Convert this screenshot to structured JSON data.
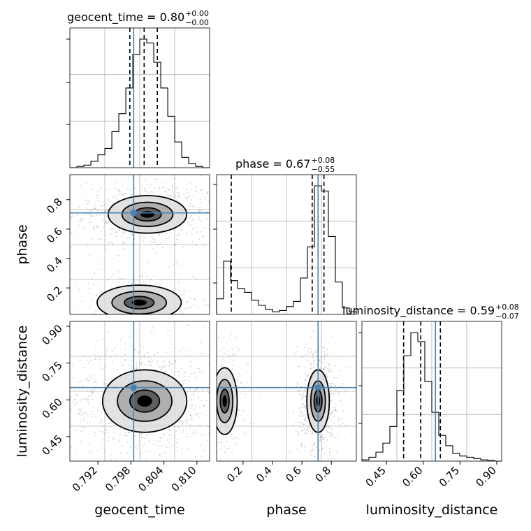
{
  "chart_data": {
    "type": "corner",
    "parameters": [
      "geocent_time",
      "phase",
      "luminosity_distance"
    ],
    "truth": {
      "geocent_time": 0.7985,
      "phase": 0.71,
      "luminosity_distance": 0.65
    },
    "ranges": {
      "geocent_time": [
        0.7869,
        0.8123
      ],
      "phase": [
        0.02,
        0.97
      ],
      "luminosity_distance": [
        0.35,
        0.92
      ]
    },
    "ticks": {
      "geocent_time": [
        "0.792",
        "0.798",
        "0.804",
        "0.810"
      ],
      "phase": [
        "0.2",
        "0.4",
        "0.6",
        "0.8"
      ],
      "luminosity_distance": [
        "0.45",
        "0.60",
        "0.75",
        "0.90"
      ]
    },
    "titles": [
      {
        "param": "geocent_time",
        "label": "geocent_time = 0.80",
        "plus": "+0.00",
        "minus": "−0.00"
      },
      {
        "param": "phase",
        "label": "phase = 0.67",
        "plus": "+0.08",
        "minus": "−0.55"
      },
      {
        "param": "luminosity_distance",
        "label": "luminosity_distance = 0.59",
        "plus": "+0.08",
        "minus": "−0.07"
      }
    ],
    "quantiles": {
      "geocent_time": [
        0.7978,
        0.8004,
        0.8028
      ],
      "phase": [
        0.12,
        0.67,
        0.75
      ],
      "luminosity_distance": [
        0.52,
        0.59,
        0.67
      ]
    },
    "histograms": {
      "geocent_time": {
        "edges": [
          0.7869,
          0.78818,
          0.78945,
          0.79072,
          0.79199,
          0.79326,
          0.79453,
          0.7958,
          0.79707,
          0.79834,
          0.79961,
          0.80088,
          0.80215,
          0.80342,
          0.80469,
          0.80596,
          0.80723,
          0.8085,
          0.80977,
          0.81104,
          0.8123
        ],
        "counts": [
          0,
          0.01,
          0.02,
          0.05,
          0.1,
          0.15,
          0.28,
          0.42,
          0.62,
          0.88,
          1.0,
          0.97,
          0.82,
          0.62,
          0.4,
          0.2,
          0.08,
          0.03,
          0.01,
          0
        ]
      },
      "phase": {
        "edges": [
          0.02,
          0.0675,
          0.115,
          0.1625,
          0.21,
          0.2575,
          0.305,
          0.3525,
          0.4,
          0.4475,
          0.495,
          0.5425,
          0.59,
          0.6375,
          0.685,
          0.7325,
          0.78,
          0.8275,
          0.875,
          0.9225,
          0.97
        ],
        "counts": [
          0.12,
          0.41,
          0.26,
          0.2,
          0.17,
          0.11,
          0.07,
          0.04,
          0.02,
          0.03,
          0.06,
          0.1,
          0.28,
          0.52,
          0.99,
          0.95,
          0.6,
          0.25,
          0.05,
          0.02
        ]
      },
      "luminosity_distance": {
        "edges": [
          0.35,
          0.3785,
          0.407,
          0.4355,
          0.464,
          0.4925,
          0.521,
          0.5495,
          0.578,
          0.6065,
          0.635,
          0.6635,
          0.692,
          0.7205,
          0.749,
          0.7775,
          0.806,
          0.8345,
          0.863,
          0.8915,
          0.92
        ],
        "counts": [
          0.01,
          0.03,
          0.07,
          0.14,
          0.27,
          0.55,
          0.82,
          1.0,
          0.93,
          0.62,
          0.38,
          0.2,
          0.12,
          0.06,
          0.04,
          0.03,
          0.02,
          0.01,
          0.005,
          0
        ]
      }
    },
    "blobs": [
      {
        "x": "geocent_time",
        "y": "phase",
        "cx": 0.801,
        "cy": 0.7,
        "sx": 0.0042,
        "sy": 0.075,
        "w": 0.7
      },
      {
        "x": "geocent_time",
        "y": "phase",
        "cx": 0.7995,
        "cy": 0.1,
        "sx": 0.0045,
        "sy": 0.07,
        "w": 0.3
      },
      {
        "x": "geocent_time",
        "y": "luminosity_distance",
        "cx": 0.8005,
        "cy": 0.595,
        "sx": 0.0045,
        "sy": 0.075,
        "w": 1.0
      },
      {
        "x": "phase",
        "y": "luminosity_distance",
        "cx": 0.71,
        "cy": 0.595,
        "sx": 0.045,
        "sy": 0.075,
        "w": 0.7
      },
      {
        "x": "phase",
        "y": "luminosity_distance",
        "cx": 0.075,
        "cy": 0.595,
        "sx": 0.05,
        "sy": 0.08,
        "w": 0.3
      }
    ],
    "grid": true
  }
}
